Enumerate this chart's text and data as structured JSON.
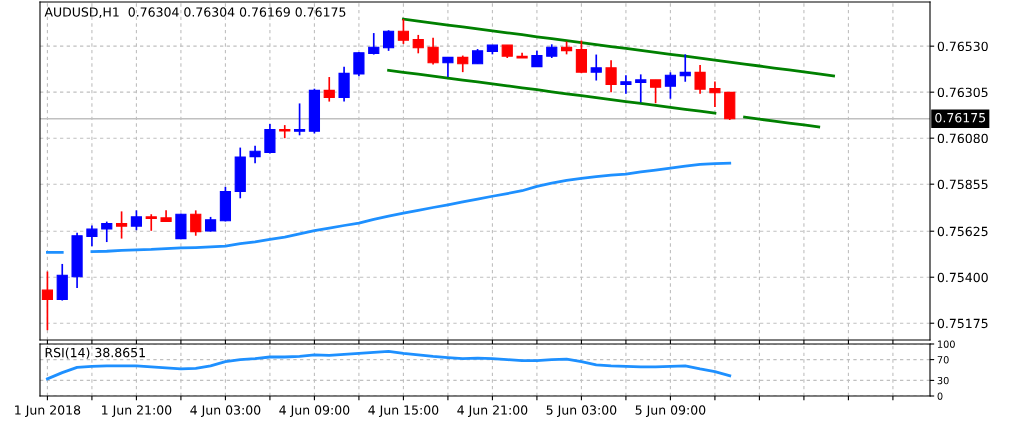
{
  "chart_data": [
    {
      "type": "candlestick",
      "title": "AUDUSD,H1  0.76304 0.76304 0.76169 0.76175",
      "categories": [
        null,
        null,
        null,
        null,
        null,
        null,
        null,
        null,
        null,
        null,
        null,
        null,
        null,
        null,
        null,
        null,
        null,
        null,
        null,
        null,
        null,
        null,
        null,
        null,
        null,
        null,
        null,
        null,
        null,
        null,
        null,
        null,
        null,
        null,
        null,
        null,
        null,
        null,
        null,
        null,
        null,
        null,
        null,
        null,
        null,
        null,
        null,
        null,
        null,
        null,
        null,
        null,
        null,
        null,
        null,
        null,
        null,
        null,
        null,
        null
      ],
      "ohlc": [
        [
          0.75337,
          0.75428,
          0.75141,
          0.75291
        ],
        [
          0.75291,
          0.75465,
          0.75286,
          0.7541
        ],
        [
          0.75402,
          0.75617,
          0.75347,
          0.75603
        ],
        [
          0.756,
          0.75653,
          0.75551,
          0.75635
        ],
        [
          0.75636,
          0.75672,
          0.75572,
          0.75663
        ],
        [
          0.75663,
          0.75722,
          0.75589,
          0.7565
        ],
        [
          0.7565,
          0.75727,
          0.7563,
          0.75695
        ],
        [
          0.75695,
          0.75708,
          0.75627,
          0.75687
        ],
        [
          0.7569,
          0.75727,
          0.75673,
          0.75673
        ],
        [
          0.75589,
          0.75711,
          0.75589,
          0.75708
        ],
        [
          0.75708,
          0.75727,
          0.75603,
          0.75623
        ],
        [
          0.75626,
          0.75695,
          0.75623,
          0.75681
        ],
        [
          0.75676,
          0.75842,
          0.75673,
          0.75819
        ],
        [
          0.7582,
          0.76034,
          0.75786,
          0.75988
        ],
        [
          0.7599,
          0.76043,
          0.75958,
          0.76016
        ],
        [
          0.7601,
          0.76149,
          0.76005,
          0.76122
        ],
        [
          0.76122,
          0.76144,
          0.7608,
          0.76116
        ],
        [
          0.76114,
          0.7625,
          0.76094,
          0.76122
        ],
        [
          0.76114,
          0.76322,
          0.76103,
          0.76314
        ],
        [
          0.76314,
          0.76379,
          0.76259,
          0.76279
        ],
        [
          0.76279,
          0.76429,
          0.76259,
          0.76397
        ],
        [
          0.76394,
          0.76502,
          0.76383,
          0.76498
        ],
        [
          0.76495,
          0.76594,
          0.76489,
          0.76525
        ],
        [
          0.76522,
          0.76608,
          0.76507,
          0.76603
        ],
        [
          0.76603,
          0.76663,
          0.76541,
          0.76559
        ],
        [
          0.76562,
          0.76585,
          0.76495,
          0.76522
        ],
        [
          0.76525,
          0.76571,
          0.7644,
          0.76449
        ],
        [
          0.76449,
          0.76476,
          0.76379,
          0.76475
        ],
        [
          0.76475,
          0.76484,
          0.76403,
          0.76444
        ],
        [
          0.76444,
          0.76516,
          0.76444,
          0.76507
        ],
        [
          0.76504,
          0.76536,
          0.7649,
          0.76535
        ],
        [
          0.76535,
          0.76535,
          0.76472,
          0.76481
        ],
        [
          0.7648,
          0.76498,
          0.76472,
          0.76472
        ],
        [
          0.7643,
          0.76507,
          0.7643,
          0.76484
        ],
        [
          0.76481,
          0.76539,
          0.76472,
          0.76525
        ],
        [
          0.76525,
          0.76553,
          0.7649,
          0.76508
        ],
        [
          0.76513,
          0.76558,
          0.76398,
          0.76403
        ],
        [
          0.76403,
          0.76489,
          0.76362,
          0.76424
        ],
        [
          0.76424,
          0.76461,
          0.76305,
          0.76343
        ],
        [
          0.76343,
          0.76388,
          0.76297,
          0.76356
        ],
        [
          0.76352,
          0.76392,
          0.76255,
          0.76365
        ],
        [
          0.76365,
          0.76365,
          0.76251,
          0.76329
        ],
        [
          0.76334,
          0.76402,
          0.76273,
          0.76388
        ],
        [
          0.76385,
          0.7649,
          0.76356,
          0.76402
        ],
        [
          0.76402,
          0.76438,
          0.76297,
          0.7632
        ],
        [
          0.76323,
          0.76357,
          0.76233,
          0.76302
        ],
        [
          0.76304,
          0.76304,
          0.76169,
          0.76175
        ],
        null,
        null,
        null,
        null,
        null,
        null,
        null,
        null,
        null,
        null,
        null,
        null,
        null
      ],
      "colors": [
        "#ff0000",
        "#0000ff",
        "#0000ff",
        "#0000ff",
        "#0000ff",
        "#ff0000",
        "#0000ff",
        "#ff0000",
        "#ff0000",
        "#0000ff",
        "#ff0000",
        "#0000ff",
        "#0000ff",
        "#0000ff",
        "#0000ff",
        "#0000ff",
        "#ff0000",
        "#0000ff",
        "#0000ff",
        "#ff0000",
        "#0000ff",
        "#0000ff",
        "#0000ff",
        "#0000ff",
        "#ff0000",
        "#ff0000",
        "#ff0000",
        "#0000ff",
        "#ff0000",
        "#0000ff",
        "#0000ff",
        "#ff0000",
        "#ff0000",
        "#0000ff",
        "#0000ff",
        "#ff0000",
        "#ff0000",
        "#0000ff",
        "#ff0000",
        "#0000ff",
        "#0000ff",
        "#ff0000",
        "#0000ff",
        "#0000ff",
        "#ff0000",
        "#ff0000",
        "#ff0000",
        null,
        null,
        null,
        null,
        null,
        null,
        null,
        null,
        null,
        null,
        null,
        null,
        null
      ],
      "series": [
        {
          "type": "line",
          "color": "#1e90ff",
          "values": [
            0.75522,
            0.75522,
            null,
            0.75525,
            0.75527,
            0.75531,
            0.75534,
            0.75536,
            0.7554,
            0.75543,
            0.75545,
            0.75548,
            0.75552,
            0.75564,
            0.75573,
            0.75585,
            0.75596,
            0.75612,
            0.75628,
            0.7564,
            0.75653,
            0.75665,
            0.75683,
            0.75699,
            0.75713,
            0.75727,
            0.75741,
            0.75754,
            0.75768,
            0.75782,
            0.75796,
            0.75809,
            0.75823,
            0.75844,
            0.7586,
            0.75874,
            0.75883,
            0.75892,
            0.75899,
            0.75904,
            0.75915,
            0.75924,
            0.75933,
            0.75943,
            0.75952,
            0.75956,
            0.75958,
            null,
            null,
            null,
            null,
            null,
            null,
            null,
            null,
            null,
            null,
            null,
            null,
            null
          ]
        },
        {
          "type": "line",
          "color": "#008000",
          "values": [
            null,
            null,
            null,
            null,
            null,
            null,
            null,
            null,
            null,
            null,
            null,
            null,
            null,
            null,
            null,
            null,
            null,
            null,
            null,
            null,
            null,
            null,
            null,
            null,
            0.76662,
            0.76652,
            0.76643,
            0.76633,
            0.76624,
            0.76614,
            0.76605,
            0.76595,
            0.76586,
            0.76576,
            0.76567,
            0.76557,
            0.76547,
            0.76538,
            0.76528,
            0.76519,
            0.76509,
            0.765,
            0.7649,
            0.76481,
            0.76471,
            0.76462,
            0.76452,
            0.76442,
            0.76433,
            0.76423,
            0.76414,
            0.76404,
            0.76395,
            0.76385,
            null,
            null,
            null,
            null,
            null,
            null
          ]
        },
        {
          "type": "line",
          "color": "#008000",
          "values": [
            null,
            null,
            null,
            null,
            null,
            null,
            null,
            null,
            null,
            null,
            null,
            null,
            null,
            null,
            null,
            null,
            null,
            null,
            null,
            null,
            null,
            null,
            null,
            0.76412,
            0.76402,
            0.76393,
            0.76383,
            0.76374,
            0.76364,
            0.76355,
            0.76345,
            0.76336,
            0.76326,
            0.76317,
            0.76307,
            0.76297,
            0.76288,
            0.76278,
            0.76269,
            0.76259,
            0.7625,
            0.7624,
            0.76231,
            0.76221,
            0.76212,
            0.76202,
            null,
            0.76183,
            0.76173,
            0.76164,
            0.76154,
            0.76145,
            0.76135,
            null,
            null,
            null,
            null,
            null,
            null,
            null
          ]
        }
      ],
      "ylim": [
        0.75093,
        0.76746
      ],
      "yticks": [
        {
          "value": 0.75175,
          "label": "0.75175"
        },
        {
          "value": 0.754,
          "label": "0.75400"
        },
        {
          "value": 0.75625,
          "label": "0.75625"
        },
        {
          "value": 0.75855,
          "label": "0.75855"
        },
        {
          "value": 0.7608,
          "label": "0.76080"
        },
        {
          "value": 0.76305,
          "label": "0.76305"
        },
        {
          "value": 0.7653,
          "label": "0.76530"
        }
      ],
      "ref_lines": [
        {
          "axis": "y",
          "value": 0.76175,
          "label": "0.76175",
          "color": "#c0c0c0"
        }
      ],
      "grid": true,
      "tick_labels": "y"
    },
    {
      "type": "line",
      "title": "RSI(14) 38.8651",
      "categories": [
        "1 Jun 2018",
        null,
        null,
        null,
        null,
        null,
        "1 Jun 21:00",
        null,
        null,
        null,
        null,
        null,
        "4 Jun 03:00",
        null,
        null,
        null,
        null,
        null,
        "4 Jun 09:00",
        null,
        null,
        null,
        null,
        null,
        "4 Jun 15:00",
        null,
        null,
        null,
        null,
        null,
        "4 Jun 21:00",
        null,
        null,
        null,
        null,
        null,
        "5 Jun 03:00",
        null,
        null,
        null,
        null,
        null,
        "5 Jun 09:00",
        null,
        null,
        null,
        null,
        null,
        null,
        null,
        null,
        null,
        null,
        null,
        null,
        null,
        null,
        null,
        null,
        null
      ],
      "series": [
        {
          "color": "#1e90ff",
          "values": [
            33,
            45,
            55,
            57,
            58,
            58,
            58,
            56,
            54,
            52,
            53,
            58,
            66,
            70,
            72,
            75,
            75,
            76,
            79,
            78,
            80,
            82,
            84,
            86,
            82,
            79,
            76,
            74,
            72,
            73,
            72,
            70,
            68,
            68,
            70,
            71,
            66,
            60,
            58,
            57,
            56,
            56,
            57,
            58,
            52,
            47,
            39,
            null,
            null,
            null,
            null,
            null,
            null,
            null,
            null,
            null,
            null,
            null,
            null,
            null
          ]
        }
      ],
      "ylim": [
        0,
        100
      ],
      "yticks": [
        0,
        30,
        70,
        100
      ],
      "grid": true
    }
  ]
}
